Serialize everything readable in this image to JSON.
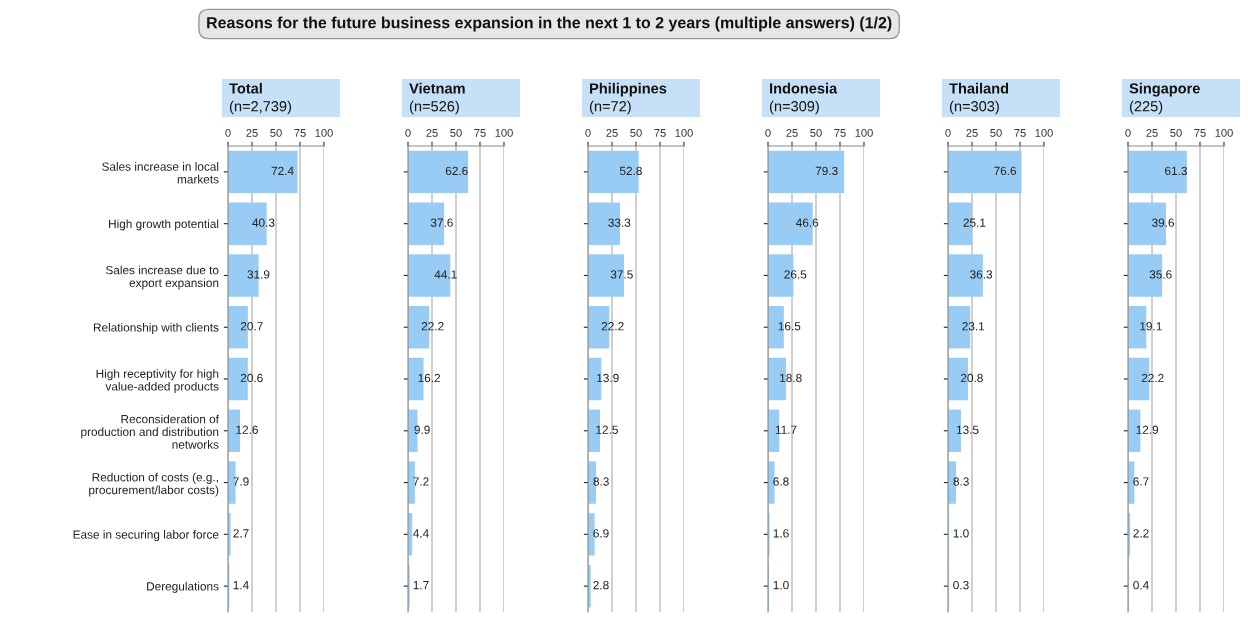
{
  "chart_data": [
    {
      "type": "bar",
      "orientation": "horizontal",
      "title": "Total",
      "subtitle": "(n=2,739)",
      "annotations": [
        "Reasons for the future business expansion in the next 1 to 2 years (multiple answers) (1/2)"
      ],
      "categories": [
        "Sales increase in local\nmarkets",
        "High growth potential",
        "Sales increase due to\nexport expansion",
        "Relationship with clients",
        "High receptivity for high\nvalue-added products",
        "Reconsideration of\nproduction and distribution\nnetworks",
        "Reduction of costs (e.g.,\nprocurement/labor costs)",
        "Ease in securing labor force",
        "Deregulations"
      ],
      "values": [
        72.4,
        40.3,
        31.9,
        20.7,
        20.6,
        12.6,
        7.9,
        2.7,
        1.4
      ],
      "color": "#99ccf5",
      "xlim": [
        0,
        100
      ],
      "xticks": [
        0,
        25,
        50,
        75,
        100
      ],
      "grid": "x",
      "data_labels": true
    },
    {
      "type": "bar",
      "orientation": "horizontal",
      "title": "Vietnam",
      "subtitle": "(n=526)",
      "categories": [
        null,
        null,
        null,
        null,
        null,
        null,
        null,
        null,
        null
      ],
      "tick_labels": "x",
      "values": [
        62.6,
        37.6,
        44.1,
        22.2,
        16.2,
        9.9,
        7.2,
        4.4,
        1.7
      ],
      "color": "#99ccf5",
      "xlim": [
        0,
        100
      ],
      "xticks": [
        0,
        25,
        50,
        75,
        100
      ],
      "grid": "x",
      "data_labels": true
    },
    {
      "type": "bar",
      "orientation": "horizontal",
      "title": "Philippines",
      "subtitle": "(n=72)",
      "categories": [
        null,
        null,
        null,
        null,
        null,
        null,
        null,
        null,
        null
      ],
      "tick_labels": "x",
      "values": [
        52.8,
        33.3,
        37.5,
        22.2,
        13.9,
        12.5,
        8.3,
        6.9,
        2.8
      ],
      "color": "#99ccf5",
      "xlim": [
        0,
        100
      ],
      "xticks": [
        0,
        25,
        50,
        75,
        100
      ],
      "grid": "x",
      "data_labels": true
    },
    {
      "type": "bar",
      "orientation": "horizontal",
      "title": "Indonesia",
      "subtitle": "(n=309)",
      "categories": [
        null,
        null,
        null,
        null,
        null,
        null,
        null,
        null,
        null
      ],
      "tick_labels": "x",
      "values": [
        79.3,
        46.6,
        26.5,
        16.5,
        18.8,
        11.7,
        6.8,
        1.6,
        1.0
      ],
      "value_labels": [
        "79.3",
        "46.6",
        "26.5",
        "16.5",
        "18.8",
        "11.7",
        "6.8",
        "1.6",
        "1.0"
      ],
      "color": "#99ccf5",
      "xlim": [
        0,
        100
      ],
      "xticks": [
        0,
        25,
        50,
        75,
        100
      ],
      "grid": "x",
      "data_labels": true
    },
    {
      "type": "bar",
      "orientation": "horizontal",
      "title": "Thailand",
      "subtitle": "(n=303)",
      "categories": [
        null,
        null,
        null,
        null,
        null,
        null,
        null,
        null,
        null
      ],
      "tick_labels": "x",
      "values": [
        76.6,
        25.1,
        36.3,
        23.1,
        20.8,
        13.5,
        8.3,
        1.0,
        0.3
      ],
      "value_labels": [
        "76.6",
        "25.1",
        "36.3",
        "23.1",
        "20.8",
        "13.5",
        "8.3",
        "1.0",
        "0.3"
      ],
      "color": "#99ccf5",
      "xlim": [
        0,
        100
      ],
      "xticks": [
        0,
        25,
        50,
        75,
        100
      ],
      "grid": "x",
      "data_labels": true
    },
    {
      "type": "bar",
      "orientation": "horizontal",
      "title": "Singapore",
      "subtitle": "(225)",
      "categories": [
        null,
        null,
        null,
        null,
        null,
        null,
        null,
        null,
        null
      ],
      "tick_labels": "x",
      "values": [
        61.3,
        39.6,
        35.6,
        19.1,
        22.2,
        12.9,
        6.7,
        2.2,
        0.4
      ],
      "color": "#99ccf5",
      "xlim": [
        0,
        100
      ],
      "xticks": [
        0,
        25,
        50,
        75,
        100
      ],
      "grid": "x",
      "data_labels": true
    }
  ]
}
